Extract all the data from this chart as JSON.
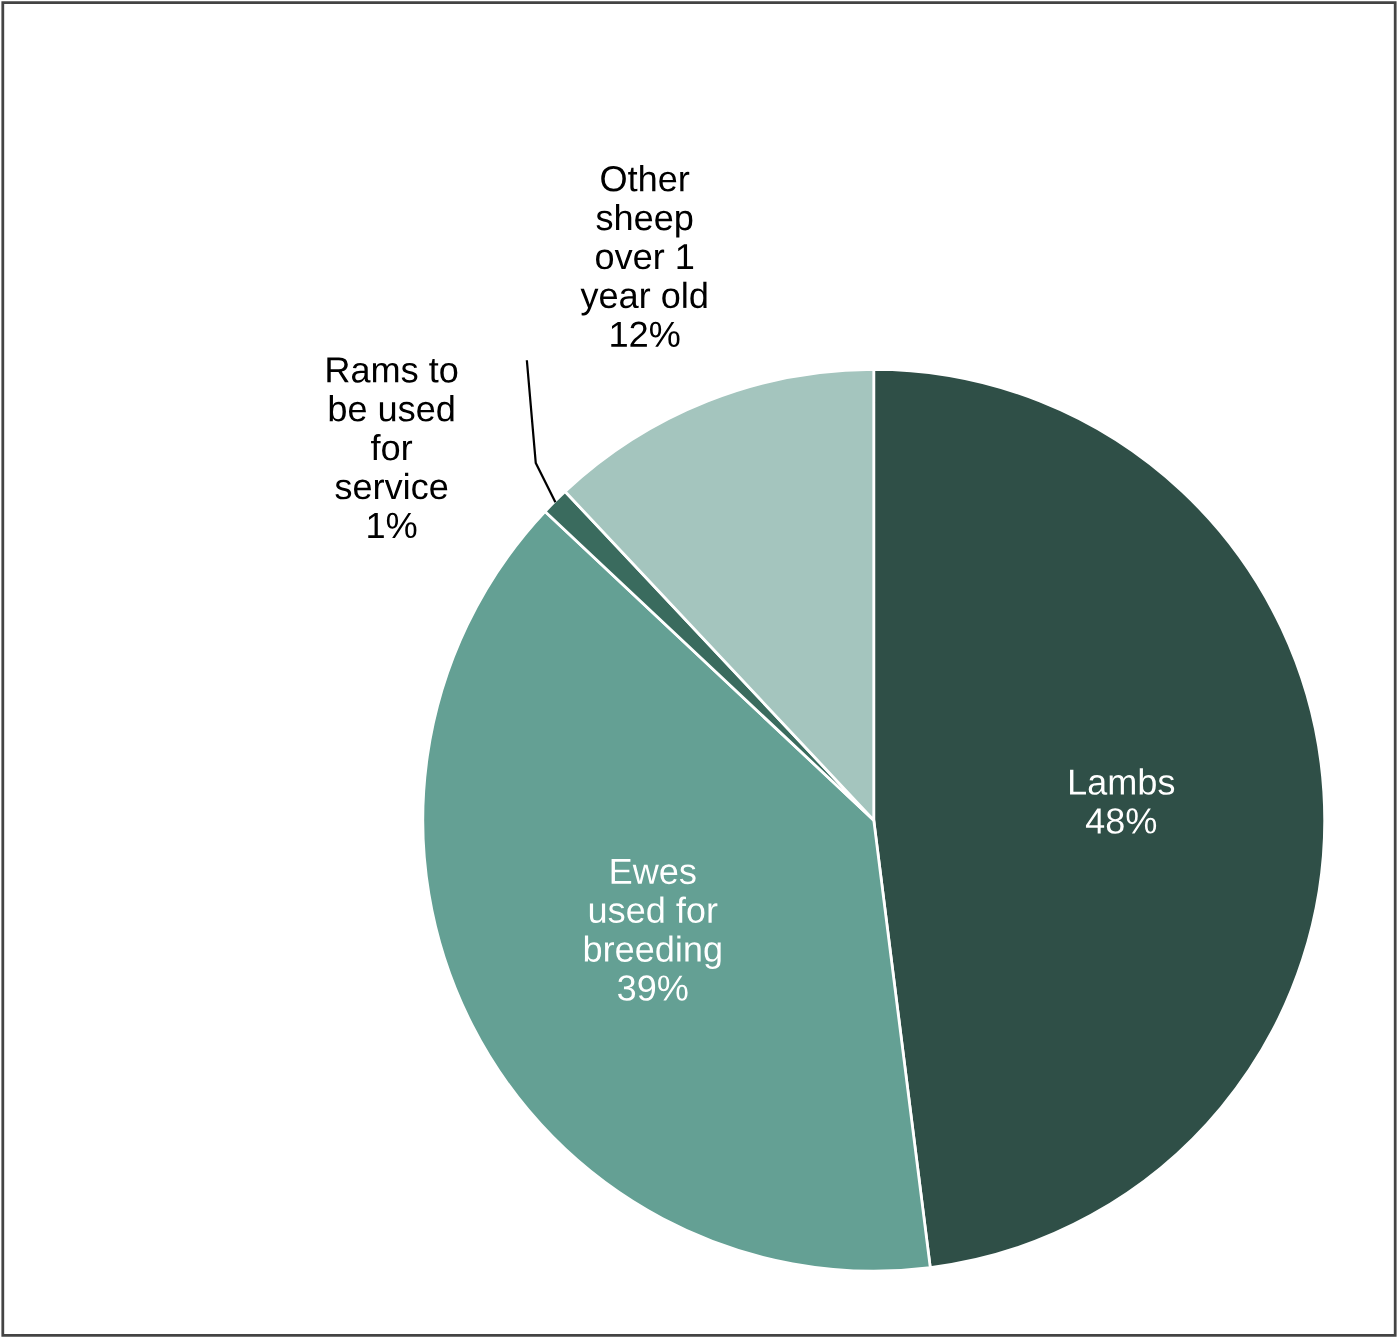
{
  "chart_data": {
    "type": "pie",
    "categories": [
      "Lambs",
      "Ewes\nused for\nbreeding",
      "Rams to\nbe used\nfor\nservice",
      "Other\nsheep\nover 1\nyear old"
    ],
    "values": [
      48,
      39,
      1,
      12
    ],
    "colors": [
      "#2f4f47",
      "#64a094",
      "#3a6b5e",
      "#a4c5be"
    ],
    "value_labels": [
      "48%",
      "39%",
      "1%",
      "12%"
    ],
    "legend": false
  }
}
